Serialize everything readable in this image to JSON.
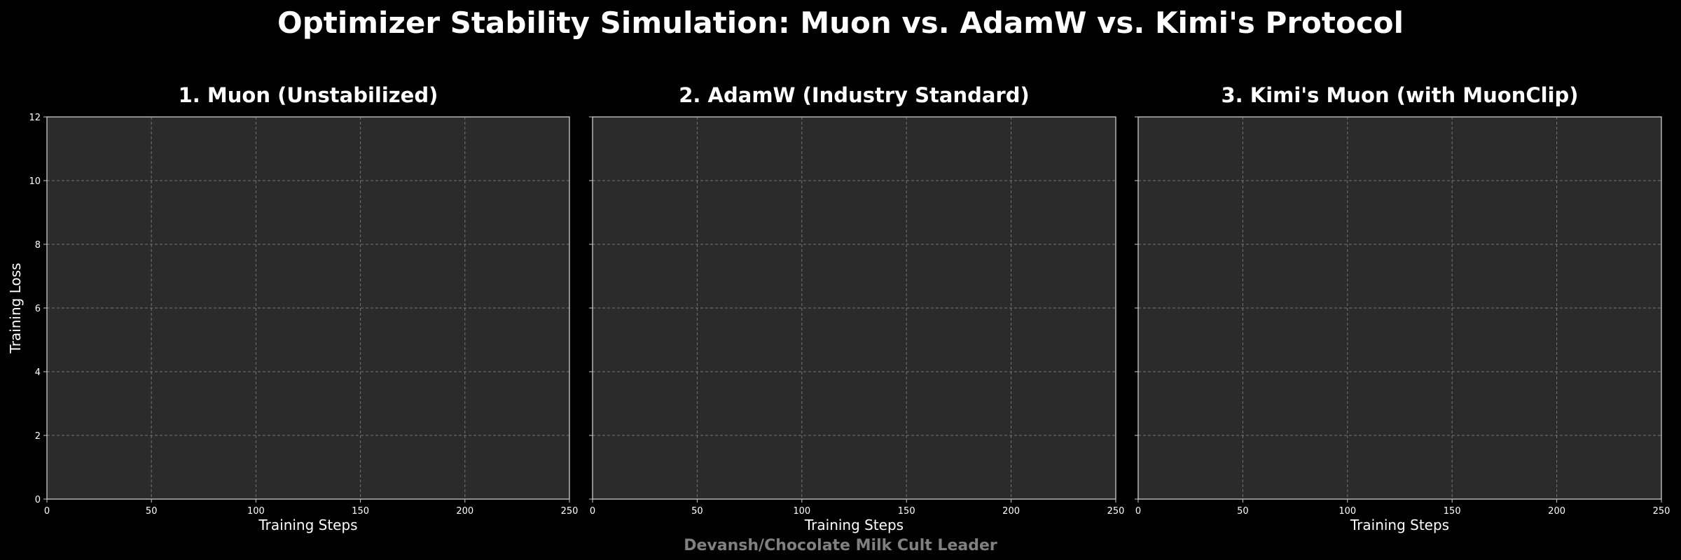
{
  "figure": {
    "title": "Optimizer Stability Simulation: Muon vs. AdamW vs. Kimi's Protocol",
    "watermark": "Devansh/Chocolate Milk Cult Leader",
    "colors": {
      "figure_background": "#000000",
      "axes_background": "#2b2b2b",
      "grid": "#888888",
      "spine": "#cccccc",
      "text": "#ffffff",
      "watermark": "#808080"
    }
  },
  "chart_data": [
    {
      "type": "line",
      "title": "1. Muon (Unstabilized)",
      "xlabel": "Training Steps",
      "ylabel": "Training Loss",
      "xlim": [
        0,
        250
      ],
      "ylim": [
        0,
        12
      ],
      "xticks": [
        0,
        50,
        100,
        150,
        200,
        250
      ],
      "yticks": [
        0,
        2,
        4,
        6,
        8,
        10,
        12
      ],
      "show_ytick_labels": true,
      "grid": true,
      "series": []
    },
    {
      "type": "line",
      "title": "2. AdamW (Industry Standard)",
      "xlabel": "Training Steps",
      "ylabel": "",
      "xlim": [
        0,
        250
      ],
      "ylim": [
        0,
        12
      ],
      "xticks": [
        0,
        50,
        100,
        150,
        200,
        250
      ],
      "yticks": [
        0,
        2,
        4,
        6,
        8,
        10,
        12
      ],
      "show_ytick_labels": false,
      "grid": true,
      "series": []
    },
    {
      "type": "line",
      "title": "3. Kimi's Muon (with MuonClip)",
      "xlabel": "Training Steps",
      "ylabel": "",
      "xlim": [
        0,
        250
      ],
      "ylim": [
        0,
        12
      ],
      "xticks": [
        0,
        50,
        100,
        150,
        200,
        250
      ],
      "yticks": [
        0,
        2,
        4,
        6,
        8,
        10,
        12
      ],
      "show_ytick_labels": false,
      "grid": true,
      "series": []
    }
  ]
}
